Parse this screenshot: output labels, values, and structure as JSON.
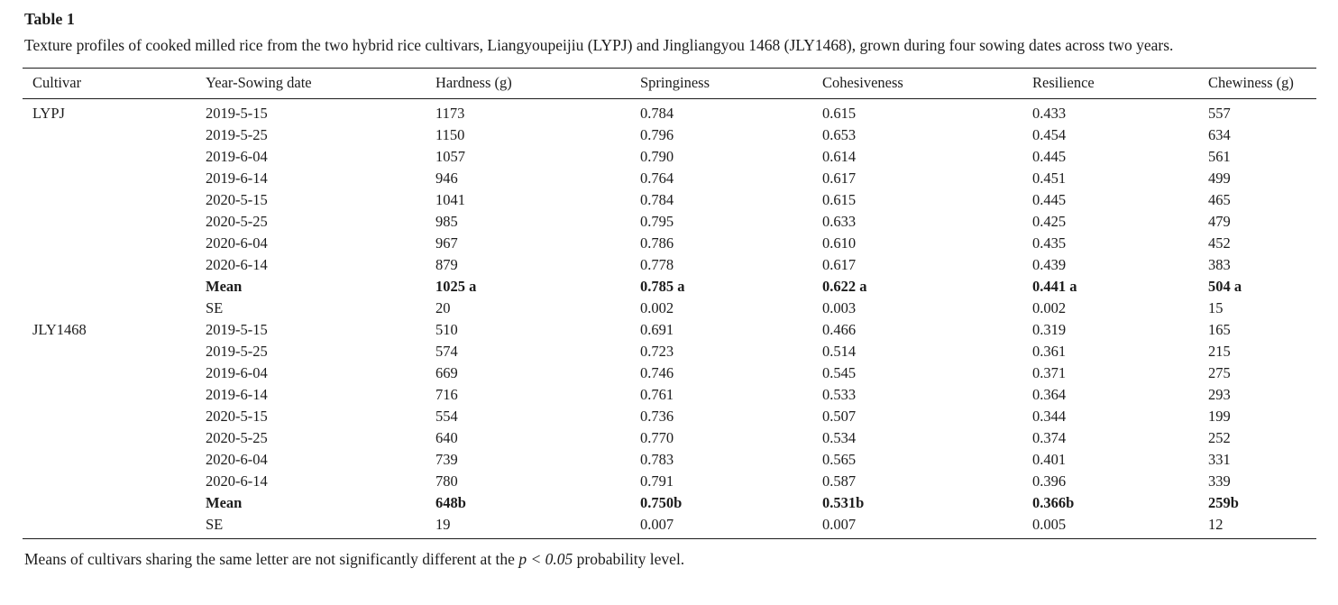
{
  "table": {
    "label": "Table 1",
    "caption": "Texture profiles of cooked milled rice from the two hybrid rice cultivars, Liangyoupeijiu (LYPJ) and Jingliangyou 1468 (JLY1468), grown during four sowing dates across two years.",
    "columns": [
      "Cultivar",
      "Year-Sowing date",
      "Hardness (g)",
      "Springiness",
      "Cohesiveness",
      "Resilience",
      "Chewiness (g)"
    ],
    "rows": [
      {
        "cultivar": "LYPJ",
        "date": "2019-5-15",
        "hardness": "1173",
        "springiness": "0.784",
        "cohesiveness": "0.615",
        "resilience": "0.433",
        "chewiness": "557",
        "bold": false
      },
      {
        "cultivar": "",
        "date": "2019-5-25",
        "hardness": "1150",
        "springiness": "0.796",
        "cohesiveness": "0.653",
        "resilience": "0.454",
        "chewiness": "634",
        "bold": false
      },
      {
        "cultivar": "",
        "date": "2019-6-04",
        "hardness": "1057",
        "springiness": "0.790",
        "cohesiveness": "0.614",
        "resilience": "0.445",
        "chewiness": "561",
        "bold": false
      },
      {
        "cultivar": "",
        "date": "2019-6-14",
        "hardness": "946",
        "springiness": "0.764",
        "cohesiveness": "0.617",
        "resilience": "0.451",
        "chewiness": "499",
        "bold": false
      },
      {
        "cultivar": "",
        "date": "2020-5-15",
        "hardness": "1041",
        "springiness": "0.784",
        "cohesiveness": "0.615",
        "resilience": "0.445",
        "chewiness": "465",
        "bold": false
      },
      {
        "cultivar": "",
        "date": "2020-5-25",
        "hardness": "985",
        "springiness": "0.795",
        "cohesiveness": "0.633",
        "resilience": "0.425",
        "chewiness": "479",
        "bold": false
      },
      {
        "cultivar": "",
        "date": "2020-6-04",
        "hardness": "967",
        "springiness": "0.786",
        "cohesiveness": "0.610",
        "resilience": "0.435",
        "chewiness": "452",
        "bold": false
      },
      {
        "cultivar": "",
        "date": "2020-6-14",
        "hardness": "879",
        "springiness": "0.778",
        "cohesiveness": "0.617",
        "resilience": "0.439",
        "chewiness": "383",
        "bold": false
      },
      {
        "cultivar": "",
        "date": "Mean",
        "hardness": "1025 a",
        "springiness": "0.785 a",
        "cohesiveness": "0.622 a",
        "resilience": "0.441 a",
        "chewiness": "504 a",
        "bold": true
      },
      {
        "cultivar": "",
        "date": "SE",
        "hardness": "20",
        "springiness": "0.002",
        "cohesiveness": "0.003",
        "resilience": "0.002",
        "chewiness": "15",
        "bold": false
      },
      {
        "cultivar": "JLY1468",
        "date": "2019-5-15",
        "hardness": "510",
        "springiness": "0.691",
        "cohesiveness": "0.466",
        "resilience": "0.319",
        "chewiness": "165",
        "bold": false
      },
      {
        "cultivar": "",
        "date": "2019-5-25",
        "hardness": "574",
        "springiness": "0.723",
        "cohesiveness": "0.514",
        "resilience": "0.361",
        "chewiness": "215",
        "bold": false
      },
      {
        "cultivar": "",
        "date": "2019-6-04",
        "hardness": "669",
        "springiness": "0.746",
        "cohesiveness": "0.545",
        "resilience": "0.371",
        "chewiness": "275",
        "bold": false
      },
      {
        "cultivar": "",
        "date": "2019-6-14",
        "hardness": "716",
        "springiness": "0.761",
        "cohesiveness": "0.533",
        "resilience": "0.364",
        "chewiness": "293",
        "bold": false
      },
      {
        "cultivar": "",
        "date": "2020-5-15",
        "hardness": "554",
        "springiness": "0.736",
        "cohesiveness": "0.507",
        "resilience": "0.344",
        "chewiness": "199",
        "bold": false
      },
      {
        "cultivar": "",
        "date": "2020-5-25",
        "hardness": "640",
        "springiness": "0.770",
        "cohesiveness": "0.534",
        "resilience": "0.374",
        "chewiness": "252",
        "bold": false
      },
      {
        "cultivar": "",
        "date": "2020-6-04",
        "hardness": "739",
        "springiness": "0.783",
        "cohesiveness": "0.565",
        "resilience": "0.401",
        "chewiness": "331",
        "bold": false
      },
      {
        "cultivar": "",
        "date": "2020-6-14",
        "hardness": "780",
        "springiness": "0.791",
        "cohesiveness": "0.587",
        "resilience": "0.396",
        "chewiness": "339",
        "bold": false
      },
      {
        "cultivar": "",
        "date": "Mean",
        "hardness": "648b",
        "springiness": "0.750b",
        "cohesiveness": "0.531b",
        "resilience": "0.366b",
        "chewiness": "259b",
        "bold": true
      },
      {
        "cultivar": "",
        "date": "SE",
        "hardness": "19",
        "springiness": "0.007",
        "cohesiveness": "0.007",
        "resilience": "0.005",
        "chewiness": "12",
        "bold": false
      }
    ],
    "footnote": {
      "pre": "Means of cultivars sharing the same letter are not significantly different at the ",
      "italic": "p < 0.05",
      "post": " probability level."
    }
  }
}
